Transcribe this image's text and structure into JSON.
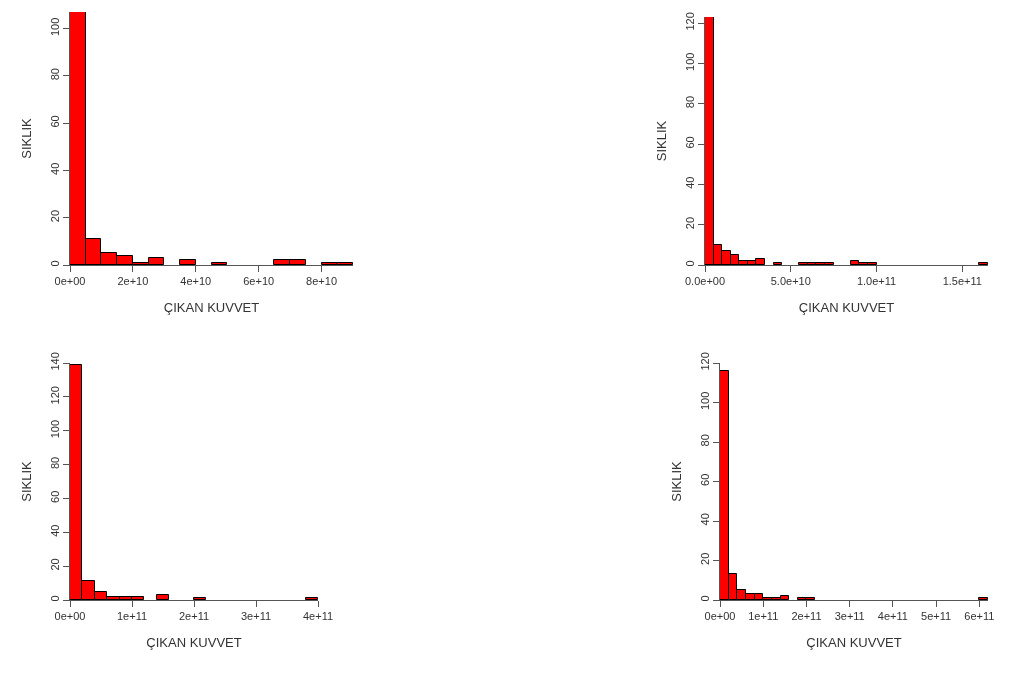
{
  "chart_data": [
    {
      "type": "histogram",
      "xlabel": "ÇIKAN KUVVET",
      "ylabel": "SIKLIK",
      "color": "#ff0000",
      "grid": false,
      "bins": [
        0,
        5000000000.0,
        10000000000.0,
        15000000000.0,
        20000000000.0,
        25000000000.0,
        30000000000.0,
        35000000000.0,
        40000000000.0,
        45000000000.0,
        50000000000.0,
        55000000000.0,
        60000000000.0,
        65000000000.0,
        70000000000.0,
        75000000000.0,
        80000000000.0,
        85000000000.0,
        90000000000.0
      ],
      "values": [
        107,
        11,
        5,
        4,
        1,
        3,
        0,
        2,
        0,
        1,
        0,
        0,
        0,
        2,
        2,
        0,
        1,
        1
      ],
      "xlim": [
        0,
        90000000000.0
      ],
      "ylim": [
        0,
        107
      ],
      "xticks": [
        {
          "value": 0,
          "label": "0e+00"
        },
        {
          "value": 20000000000.0,
          "label": "2e+10"
        },
        {
          "value": 40000000000.0,
          "label": "4e+10"
        },
        {
          "value": 60000000000.0,
          "label": "6e+10"
        },
        {
          "value": 80000000000.0,
          "label": "8e+10"
        }
      ],
      "yticks": [
        0,
        20,
        40,
        60,
        80,
        100
      ]
    },
    {
      "type": "histogram",
      "xlabel": "ÇIKAN KUVVET",
      "ylabel": "SIKLIK",
      "color": "#ff0000",
      "grid": false,
      "bins": [
        0,
        5000000000.0,
        10000000000.0,
        15000000000.0,
        20000000000.0,
        25000000000.0,
        30000000000.0,
        35000000000.0,
        40000000000.0,
        45000000000.0,
        50000000000.0,
        55000000000.0,
        60000000000.0,
        65000000000.0,
        70000000000.0,
        75000000000.0,
        80000000000.0,
        85000000000.0,
        90000000000.0,
        95000000000.0,
        100000000000.0,
        105000000000.0,
        110000000000.0,
        115000000000.0,
        120000000000.0,
        125000000000.0,
        130000000000.0,
        135000000000.0,
        140000000000.0,
        145000000000.0,
        150000000000.0,
        155000000000.0,
        160000000000.0,
        165000000000.0
      ],
      "values": [
        123,
        10,
        7,
        5,
        2,
        2,
        3,
        0,
        1,
        0,
        0,
        1,
        1,
        1,
        1,
        0,
        0,
        2,
        1,
        1,
        0,
        0,
        0,
        0,
        0,
        0,
        0,
        0,
        0,
        0,
        0,
        0,
        1
      ],
      "xlim": [
        0,
        165000000000.0
      ],
      "ylim": [
        0,
        123
      ],
      "xticks": [
        {
          "value": 0,
          "label": "0.0e+00"
        },
        {
          "value": 50000000000.0,
          "label": "5.0e+10"
        },
        {
          "value": 100000000000.0,
          "label": "1.0e+11"
        },
        {
          "value": 150000000000.0,
          "label": "1.5e+11"
        }
      ],
      "yticks": [
        0,
        20,
        40,
        60,
        80,
        100,
        120
      ]
    },
    {
      "type": "histogram",
      "xlabel": "ÇIKAN KUVVET",
      "ylabel": "SIKLIK",
      "color": "#ff0000",
      "grid": false,
      "bins": [
        0,
        20000000000.0,
        40000000000.0,
        60000000000.0,
        80000000000.0,
        100000000000.0,
        120000000000.0,
        140000000000.0,
        160000000000.0,
        180000000000.0,
        200000000000.0,
        220000000000.0,
        240000000000.0,
        260000000000.0,
        280000000000.0,
        300000000000.0,
        320000000000.0,
        340000000000.0,
        360000000000.0,
        380000000000.0,
        400000000000.0
      ],
      "values": [
        139,
        11,
        5,
        2,
        2,
        2,
        0,
        3,
        0,
        0,
        1,
        0,
        0,
        0,
        0,
        0,
        0,
        0,
        0,
        1
      ],
      "xlim": [
        0,
        400000000000.0
      ],
      "ylim": [
        0,
        140
      ],
      "xticks": [
        {
          "value": 0,
          "label": "0e+00"
        },
        {
          "value": 100000000000.0,
          "label": "1e+11"
        },
        {
          "value": 200000000000.0,
          "label": "2e+11"
        },
        {
          "value": 300000000000.0,
          "label": "3e+11"
        },
        {
          "value": 400000000000.0,
          "label": "4e+11"
        }
      ],
      "yticks": [
        0,
        20,
        40,
        60,
        80,
        100,
        120,
        140
      ]
    },
    {
      "type": "histogram",
      "xlabel": "ÇIKAN KUVVET",
      "ylabel": "SIKLIK",
      "color": "#ff0000",
      "grid": false,
      "bins": [
        0,
        20000000000.0,
        40000000000.0,
        60000000000.0,
        80000000000.0,
        100000000000.0,
        120000000000.0,
        140000000000.0,
        160000000000.0,
        180000000000.0,
        200000000000.0,
        220000000000.0,
        240000000000.0,
        260000000000.0,
        280000000000.0,
        300000000000.0,
        320000000000.0,
        340000000000.0,
        360000000000.0,
        380000000000.0,
        400000000000.0,
        420000000000.0,
        440000000000.0,
        460000000000.0,
        480000000000.0,
        500000000000.0,
        520000000000.0,
        540000000000.0,
        560000000000.0,
        580000000000.0,
        600000000000.0,
        620000000000.0
      ],
      "values": [
        116,
        13,
        5,
        3,
        3,
        1,
        1,
        2,
        0,
        1,
        1,
        0,
        0,
        0,
        0,
        0,
        0,
        0,
        0,
        0,
        0,
        0,
        0,
        0,
        0,
        0,
        0,
        0,
        0,
        0,
        1
      ],
      "xlim": [
        0,
        620000000000.0
      ],
      "ylim": [
        0,
        120
      ],
      "xticks": [
        {
          "value": 0,
          "label": "0e+00"
        },
        {
          "value": 100000000000.0,
          "label": "1e+11"
        },
        {
          "value": 200000000000.0,
          "label": "2e+11"
        },
        {
          "value": 300000000000.0,
          "label": "3e+11"
        },
        {
          "value": 400000000000.0,
          "label": "4e+11"
        },
        {
          "value": 500000000000.0,
          "label": "5e+11"
        },
        {
          "value": 600000000000.0,
          "label": "6e+11"
        }
      ],
      "yticks": [
        0,
        20,
        40,
        60,
        80,
        100,
        120
      ]
    }
  ]
}
